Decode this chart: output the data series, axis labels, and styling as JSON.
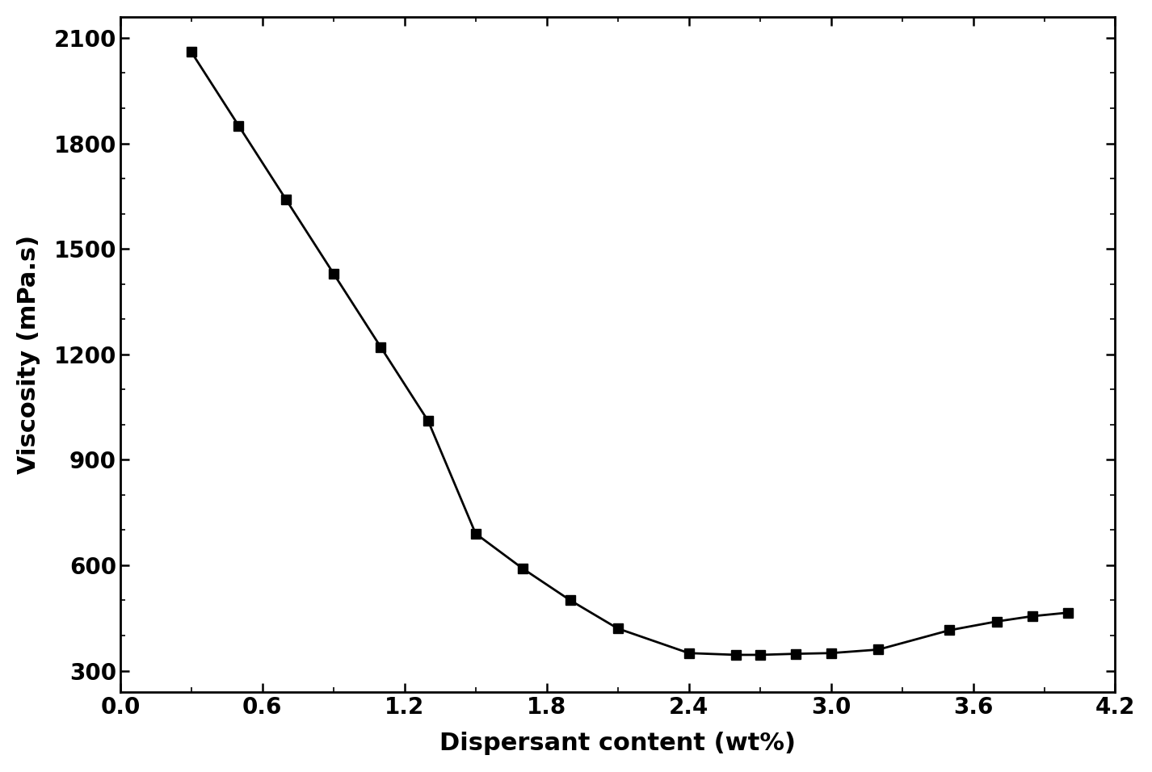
{
  "x": [
    0.3,
    0.5,
    0.7,
    0.9,
    1.1,
    1.3,
    1.5,
    1.7,
    1.9,
    2.1,
    2.4,
    2.6,
    2.7,
    2.85,
    3.0,
    3.2,
    3.5,
    3.7,
    3.85,
    4.0
  ],
  "y": [
    2060,
    1850,
    1640,
    1430,
    1220,
    1010,
    690,
    590,
    500,
    420,
    350,
    345,
    345,
    348,
    350,
    360,
    415,
    440,
    455,
    465
  ],
  "xlabel": "Dispersant content (wt%)",
  "ylabel": "Viscosity (mPa.s)",
  "xlim": [
    0.0,
    4.2
  ],
  "ylim": [
    240,
    2160
  ],
  "xticks": [
    0.0,
    0.6,
    1.2,
    1.8,
    2.4,
    3.0,
    3.6,
    4.2
  ],
  "yticks": [
    300,
    600,
    900,
    1200,
    1500,
    1800,
    2100
  ],
  "line_color": "#000000",
  "marker": "s",
  "marker_size": 8,
  "line_width": 2.0,
  "background_color": "#ffffff",
  "xlabel_fontsize": 22,
  "ylabel_fontsize": 22,
  "tick_fontsize": 20
}
